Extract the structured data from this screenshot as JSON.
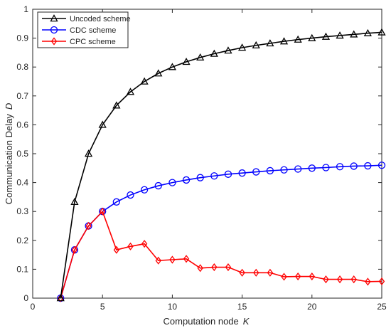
{
  "chart_data": {
    "type": "line",
    "xlabel": "Computation node",
    "xlabel_var": "K",
    "ylabel": "Communication Delay",
    "ylabel_var": "D",
    "xlim": [
      0,
      25
    ],
    "ylim": [
      0,
      1
    ],
    "xticks": [
      0,
      5,
      10,
      15,
      20,
      25
    ],
    "yticks": [
      0,
      0.1,
      0.2,
      0.3,
      0.4,
      0.5,
      0.6,
      0.7,
      0.8,
      0.9,
      1
    ],
    "legend_position": "top-left",
    "grid": false,
    "x": [
      2,
      3,
      4,
      5,
      6,
      7,
      8,
      9,
      10,
      11,
      12,
      13,
      14,
      15,
      16,
      17,
      18,
      19,
      20,
      21,
      22,
      23,
      24,
      25
    ],
    "series": [
      {
        "name": "Uncoded scheme",
        "color": "#000000",
        "marker": "triangle",
        "values": [
          0,
          0.333,
          0.5,
          0.6,
          0.667,
          0.714,
          0.75,
          0.778,
          0.8,
          0.818,
          0.833,
          0.846,
          0.857,
          0.867,
          0.875,
          0.882,
          0.889,
          0.895,
          0.9,
          0.905,
          0.909,
          0.913,
          0.917,
          0.92
        ]
      },
      {
        "name": "CDC scheme",
        "color": "#0000ff",
        "marker": "circle",
        "values": [
          0,
          0.167,
          0.25,
          0.3,
          0.333,
          0.357,
          0.375,
          0.389,
          0.4,
          0.409,
          0.417,
          0.423,
          0.429,
          0.433,
          0.437,
          0.441,
          0.444,
          0.447,
          0.45,
          0.452,
          0.455,
          0.457,
          0.458,
          0.46
        ]
      },
      {
        "name": "CPC scheme",
        "color": "#ff0000",
        "marker": "diamond",
        "values": [
          0,
          0.167,
          0.25,
          0.3,
          0.167,
          0.179,
          0.188,
          0.13,
          0.133,
          0.136,
          0.104,
          0.107,
          0.107,
          0.088,
          0.088,
          0.088,
          0.074,
          0.075,
          0.075,
          0.065,
          0.065,
          0.065,
          0.057,
          0.058
        ]
      }
    ]
  }
}
